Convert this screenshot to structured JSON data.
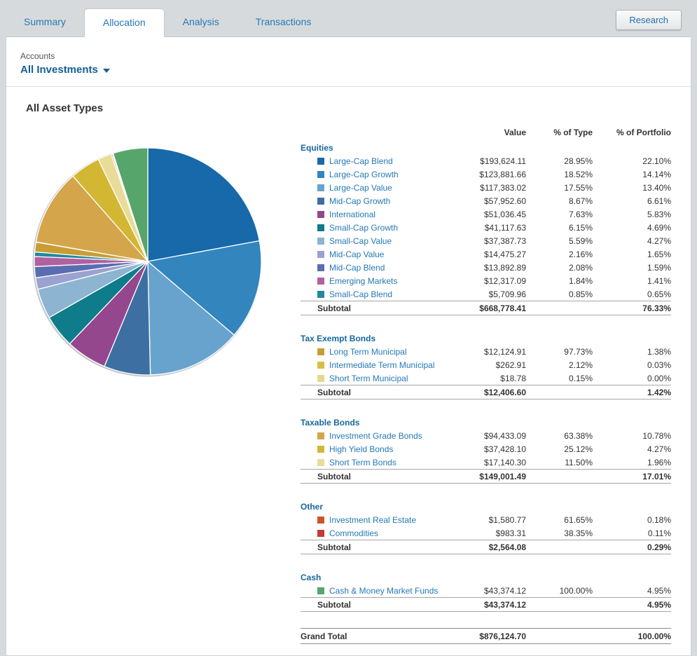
{
  "tabs": [
    {
      "label": "Summary"
    },
    {
      "label": "Allocation"
    },
    {
      "label": "Analysis"
    },
    {
      "label": "Transactions"
    }
  ],
  "active_tab": "Allocation",
  "research_button": {
    "label": "Research"
  },
  "accounts": {
    "label": "Accounts",
    "selected": "All Investments"
  },
  "page_title": "All Asset Types",
  "table": {
    "headers": {
      "value": "Value",
      "pct_type": "% of Type",
      "pct_portfolio": "% of Portfolio"
    },
    "sections": [
      {
        "name": "Equities",
        "rows": [
          {
            "label": "Large-Cap Blend",
            "color": "#1769a9",
            "value": "$193,624.11",
            "pct_type": "28.95%",
            "pct_portfolio": "22.10%"
          },
          {
            "label": "Large-Cap Growth",
            "color": "#3285bd",
            "value": "$123,881.66",
            "pct_type": "18.52%",
            "pct_portfolio": "14.14%"
          },
          {
            "label": "Large-Cap Value",
            "color": "#68a3cd",
            "value": "$117,383.02",
            "pct_type": "17.55%",
            "pct_portfolio": "13.40%"
          },
          {
            "label": "Mid-Cap Growth",
            "color": "#3d6fa3",
            "value": "$57,952.60",
            "pct_type": "8.67%",
            "pct_portfolio": "6.61%"
          },
          {
            "label": "International",
            "color": "#94478d",
            "value": "$51,036.45",
            "pct_type": "7.63%",
            "pct_portfolio": "5.83%"
          },
          {
            "label": "Small-Cap Growth",
            "color": "#0e7c8b",
            "value": "$41,117.63",
            "pct_type": "6.15%",
            "pct_portfolio": "4.69%"
          },
          {
            "label": "Small-Cap Value",
            "color": "#8db4d0",
            "value": "$37,387.73",
            "pct_type": "5.59%",
            "pct_portfolio": "4.27%"
          },
          {
            "label": "Mid-Cap Value",
            "color": "#9ba2d0",
            "value": "$14,475.27",
            "pct_type": "2.16%",
            "pct_portfolio": "1.65%"
          },
          {
            "label": "Mid-Cap Blend",
            "color": "#5b6db1",
            "value": "$13,892.89",
            "pct_type": "2.08%",
            "pct_portfolio": "1.59%"
          },
          {
            "label": "Emerging Markets",
            "color": "#b160a1",
            "value": "$12,317.09",
            "pct_type": "1.84%",
            "pct_portfolio": "1.41%"
          },
          {
            "label": "Small-Cap Blend",
            "color": "#23889b",
            "value": "$5,709.96",
            "pct_type": "0.85%",
            "pct_portfolio": "0.65%"
          }
        ],
        "subtotal": {
          "label": "Subtotal",
          "value": "$668,778.41",
          "pct_type": "",
          "pct_portfolio": "76.33%"
        }
      },
      {
        "name": "Tax Exempt Bonds",
        "rows": [
          {
            "label": "Long Term Municipal",
            "color": "#c79e34",
            "value": "$12,124.91",
            "pct_type": "97.73%",
            "pct_portfolio": "1.38%"
          },
          {
            "label": "Intermediate Term Municipal",
            "color": "#d7bd45",
            "value": "$262.91",
            "pct_type": "2.12%",
            "pct_portfolio": "0.03%"
          },
          {
            "label": "Short Term Municipal",
            "color": "#e7d88d",
            "value": "$18.78",
            "pct_type": "0.15%",
            "pct_portfolio": "0.00%"
          }
        ],
        "subtotal": {
          "label": "Subtotal",
          "value": "$12,406.60",
          "pct_type": "",
          "pct_portfolio": "1.42%"
        }
      },
      {
        "name": "Taxable Bonds",
        "rows": [
          {
            "label": "Investment Grade Bonds",
            "color": "#d4a54b",
            "value": "$94,433.09",
            "pct_type": "63.38%",
            "pct_portfolio": "10.78%"
          },
          {
            "label": "High Yield Bonds",
            "color": "#d3b733",
            "value": "$37,428.10",
            "pct_type": "25.12%",
            "pct_portfolio": "4.27%"
          },
          {
            "label": "Short Term Bonds",
            "color": "#e9dc99",
            "value": "$17,140.30",
            "pct_type": "11.50%",
            "pct_portfolio": "1.96%"
          }
        ],
        "subtotal": {
          "label": "Subtotal",
          "value": "$149,001.49",
          "pct_type": "",
          "pct_portfolio": "17.01%"
        }
      },
      {
        "name": "Other",
        "rows": [
          {
            "label": "Investment Real Estate",
            "color": "#cd5429",
            "value": "$1,580.77",
            "pct_type": "61.65%",
            "pct_portfolio": "0.18%"
          },
          {
            "label": "Commodities",
            "color": "#c23b33",
            "value": "$983.31",
            "pct_type": "38.35%",
            "pct_portfolio": "0.11%"
          }
        ],
        "subtotal": {
          "label": "Subtotal",
          "value": "$2,564.08",
          "pct_type": "",
          "pct_portfolio": "0.29%"
        }
      },
      {
        "name": "Cash",
        "rows": [
          {
            "label": "Cash & Money Market Funds",
            "color": "#56a56a",
            "value": "$43,374.12",
            "pct_type": "100.00%",
            "pct_portfolio": "4.95%"
          }
        ],
        "subtotal": {
          "label": "Subtotal",
          "value": "$43,374.12",
          "pct_type": "",
          "pct_portfolio": "4.95%"
        }
      }
    ],
    "grand_total": {
      "label": "Grand Total",
      "value": "$876,124.70",
      "pct_type": "",
      "pct_portfolio": "100.00%"
    }
  },
  "chart_data": {
    "type": "pie",
    "title": "All Asset Types allocation by % of Portfolio",
    "legend_position": "table-right",
    "labels": [
      "Large-Cap Blend",
      "Large-Cap Growth",
      "Large-Cap Value",
      "Mid-Cap Growth",
      "International",
      "Small-Cap Growth",
      "Small-Cap Value",
      "Mid-Cap Value",
      "Mid-Cap Blend",
      "Emerging Markets",
      "Small-Cap Blend",
      "Long Term Municipal",
      "Intermediate Term Municipal",
      "Short Term Municipal",
      "Investment Grade Bonds",
      "High Yield Bonds",
      "Short Term Bonds",
      "Investment Real Estate",
      "Commodities",
      "Cash & Money Market Funds"
    ],
    "values": [
      22.1,
      14.14,
      13.4,
      6.61,
      5.83,
      4.69,
      4.27,
      1.65,
      1.59,
      1.41,
      0.65,
      1.38,
      0.03,
      0.0,
      10.78,
      4.27,
      1.96,
      0.18,
      0.11,
      4.95
    ],
    "colors": [
      "#1769a9",
      "#3285bd",
      "#68a3cd",
      "#3d6fa3",
      "#94478d",
      "#0e7c8b",
      "#8db4d0",
      "#9ba2d0",
      "#5b6db1",
      "#b160a1",
      "#23889b",
      "#c79e34",
      "#d7bd45",
      "#e7d88d",
      "#d4a54b",
      "#d3b733",
      "#e9dc99",
      "#cd5429",
      "#c23b33",
      "#56a56a"
    ]
  }
}
